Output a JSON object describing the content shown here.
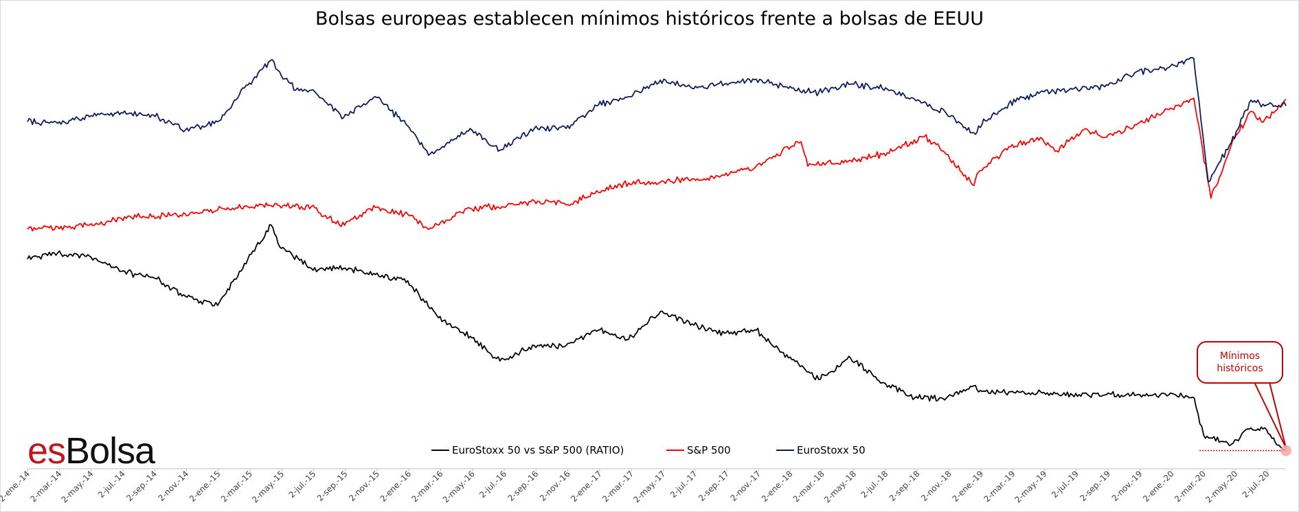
{
  "chart_data": {
    "type": "line",
    "title": "Bolsas europeas establecen mínimos históricos frente a bolsas de EEUU",
    "xlabel": "",
    "ylabel": "",
    "grid": false,
    "legend_placement": "bottom",
    "y_axis_visible": false,
    "x_tick_labels": [
      "2-ene.-14",
      "2-mar.-14",
      "2-may.-14",
      "2-jul.-14",
      "2-sep.-14",
      "2-nov.-14",
      "2-ene.-15",
      "2-mar.-15",
      "2-may.-15",
      "2-jul.-15",
      "2-sep.-15",
      "2-nov.-15",
      "2-ene.-16",
      "2-mar.-16",
      "2-may.-16",
      "2-jul.-16",
      "2-sep.-16",
      "2-nov.-16",
      "2-ene.-17",
      "2-mar.-17",
      "2-may.-17",
      "2-jul.-17",
      "2-sep.-17",
      "2-nov.-17",
      "2-ene.-18",
      "2-mar.-18",
      "2-may.-18",
      "2-jul.-18",
      "2-sep.-18",
      "2-nov.-18",
      "2-ene.-19",
      "2-mar.-19",
      "2-may.-19",
      "2-jul.-19",
      "2-sep.-19",
      "2-nov.-19",
      "2-ene.-20",
      "2-mar.-20",
      "2-may.-20",
      "2-jul.-20"
    ],
    "series": [
      {
        "name": "EuroStoxx 50 vs S&P 500 (RATIO)",
        "color": "#000000",
        "x": [
          "2014-01-02",
          "2014-03-01",
          "2014-05-01",
          "2014-07-01",
          "2014-09-01",
          "2014-11-01",
          "2015-01-02",
          "2015-03-01",
          "2015-04-15",
          "2015-05-01",
          "2015-07-01",
          "2015-09-01",
          "2015-11-01",
          "2016-01-02",
          "2016-03-01",
          "2016-05-01",
          "2016-06-27",
          "2016-09-01",
          "2016-11-01",
          "2017-01-02",
          "2017-03-01",
          "2017-05-01",
          "2017-07-01",
          "2017-09-01",
          "2017-11-01",
          "2018-01-02",
          "2018-03-01",
          "2018-05-01",
          "2018-07-01",
          "2018-09-01",
          "2018-11-01",
          "2018-12-24",
          "2019-01-02",
          "2019-03-01",
          "2019-05-01",
          "2019-07-01",
          "2019-09-01",
          "2019-11-01",
          "2020-01-02",
          "2020-02-20",
          "2020-03-09",
          "2020-05-01",
          "2020-06-01",
          "2020-07-01",
          "2020-08-14"
        ],
        "values": [
          61,
          63,
          62,
          57,
          55,
          49,
          46,
          61,
          72,
          65,
          58,
          58,
          56,
          54,
          42,
          36,
          28,
          33,
          33,
          38,
          35,
          44,
          40,
          37,
          38,
          29,
          22,
          29,
          21,
          16,
          16,
          20,
          18,
          18,
          18,
          17,
          17,
          17,
          17,
          16,
          4,
          1,
          6,
          6,
          -1
        ]
      },
      {
        "name": "S&P 500",
        "color": "#ff0000",
        "x": [
          "2014-01-02",
          "2014-03-01",
          "2014-05-01",
          "2014-07-01",
          "2014-09-01",
          "2014-11-01",
          "2015-01-02",
          "2015-03-01",
          "2015-05-01",
          "2015-07-01",
          "2015-08-24",
          "2015-11-01",
          "2016-01-02",
          "2016-02-11",
          "2016-05-01",
          "2016-07-01",
          "2016-09-01",
          "2016-11-01",
          "2017-01-02",
          "2017-03-01",
          "2017-05-01",
          "2017-07-01",
          "2017-09-01",
          "2017-11-01",
          "2018-01-26",
          "2018-02-08",
          "2018-05-01",
          "2018-07-01",
          "2018-09-20",
          "2018-11-01",
          "2018-12-24",
          "2019-01-02",
          "2019-03-01",
          "2019-05-01",
          "2019-06-01",
          "2019-07-26",
          "2019-09-01",
          "2019-11-01",
          "2020-01-02",
          "2020-02-19",
          "2020-03-23",
          "2020-05-01",
          "2020-06-08",
          "2020-07-01",
          "2020-08-14"
        ],
        "values": [
          1832,
          1860,
          1880,
          1960,
          1990,
          2010,
          2060,
          2100,
          2110,
          2100,
          1880,
          2090,
          2010,
          1830,
          2080,
          2100,
          2170,
          2120,
          2270,
          2380,
          2390,
          2430,
          2470,
          2580,
          2870,
          2580,
          2650,
          2720,
          2930,
          2720,
          2350,
          2510,
          2810,
          2920,
          2760,
          3025,
          2920,
          3070,
          3250,
          3386,
          2200,
          2830,
          3230,
          3100,
          3372
        ]
      },
      {
        "name": "EuroStoxx 50",
        "color": "#0d1a5c",
        "x": [
          "2014-01-02",
          "2014-03-01",
          "2014-05-01",
          "2014-07-01",
          "2014-09-01",
          "2014-11-01",
          "2015-01-02",
          "2015-03-01",
          "2015-04-13",
          "2015-05-01",
          "2015-06-01",
          "2015-07-01",
          "2015-09-01",
          "2015-11-01",
          "2016-01-02",
          "2016-02-11",
          "2016-05-01",
          "2016-06-27",
          "2016-09-01",
          "2016-11-01",
          "2017-01-02",
          "2017-03-01",
          "2017-05-01",
          "2017-07-01",
          "2017-09-01",
          "2017-11-01",
          "2018-01-02",
          "2018-03-01",
          "2018-05-01",
          "2018-07-01",
          "2018-09-01",
          "2018-11-01",
          "2018-12-27",
          "2019-01-02",
          "2019-03-01",
          "2019-05-01",
          "2019-07-01",
          "2019-09-01",
          "2019-11-01",
          "2020-01-02",
          "2020-02-19",
          "2020-03-18",
          "2020-05-01",
          "2020-06-08",
          "2020-07-01",
          "2020-08-14"
        ],
        "values": [
          3100,
          3080,
          3160,
          3210,
          3180,
          3000,
          3100,
          3540,
          3830,
          3700,
          3480,
          3480,
          3150,
          3400,
          3050,
          2700,
          3020,
          2760,
          3020,
          3020,
          3300,
          3400,
          3600,
          3500,
          3550,
          3610,
          3500,
          3450,
          3550,
          3500,
          3370,
          3200,
          2950,
          3050,
          3320,
          3460,
          3490,
          3520,
          3700,
          3750,
          3860,
          2380,
          2850,
          3360,
          3310,
          3290
        ]
      }
    ],
    "annotations": [
      {
        "text": "Mínimos históricos",
        "target_series": "EuroStoxx 50 vs S&P 500 (RATIO)",
        "target_x": "2020-08-14"
      }
    ]
  },
  "brand": {
    "prefix": "es",
    "suffix": "Bolsa"
  }
}
